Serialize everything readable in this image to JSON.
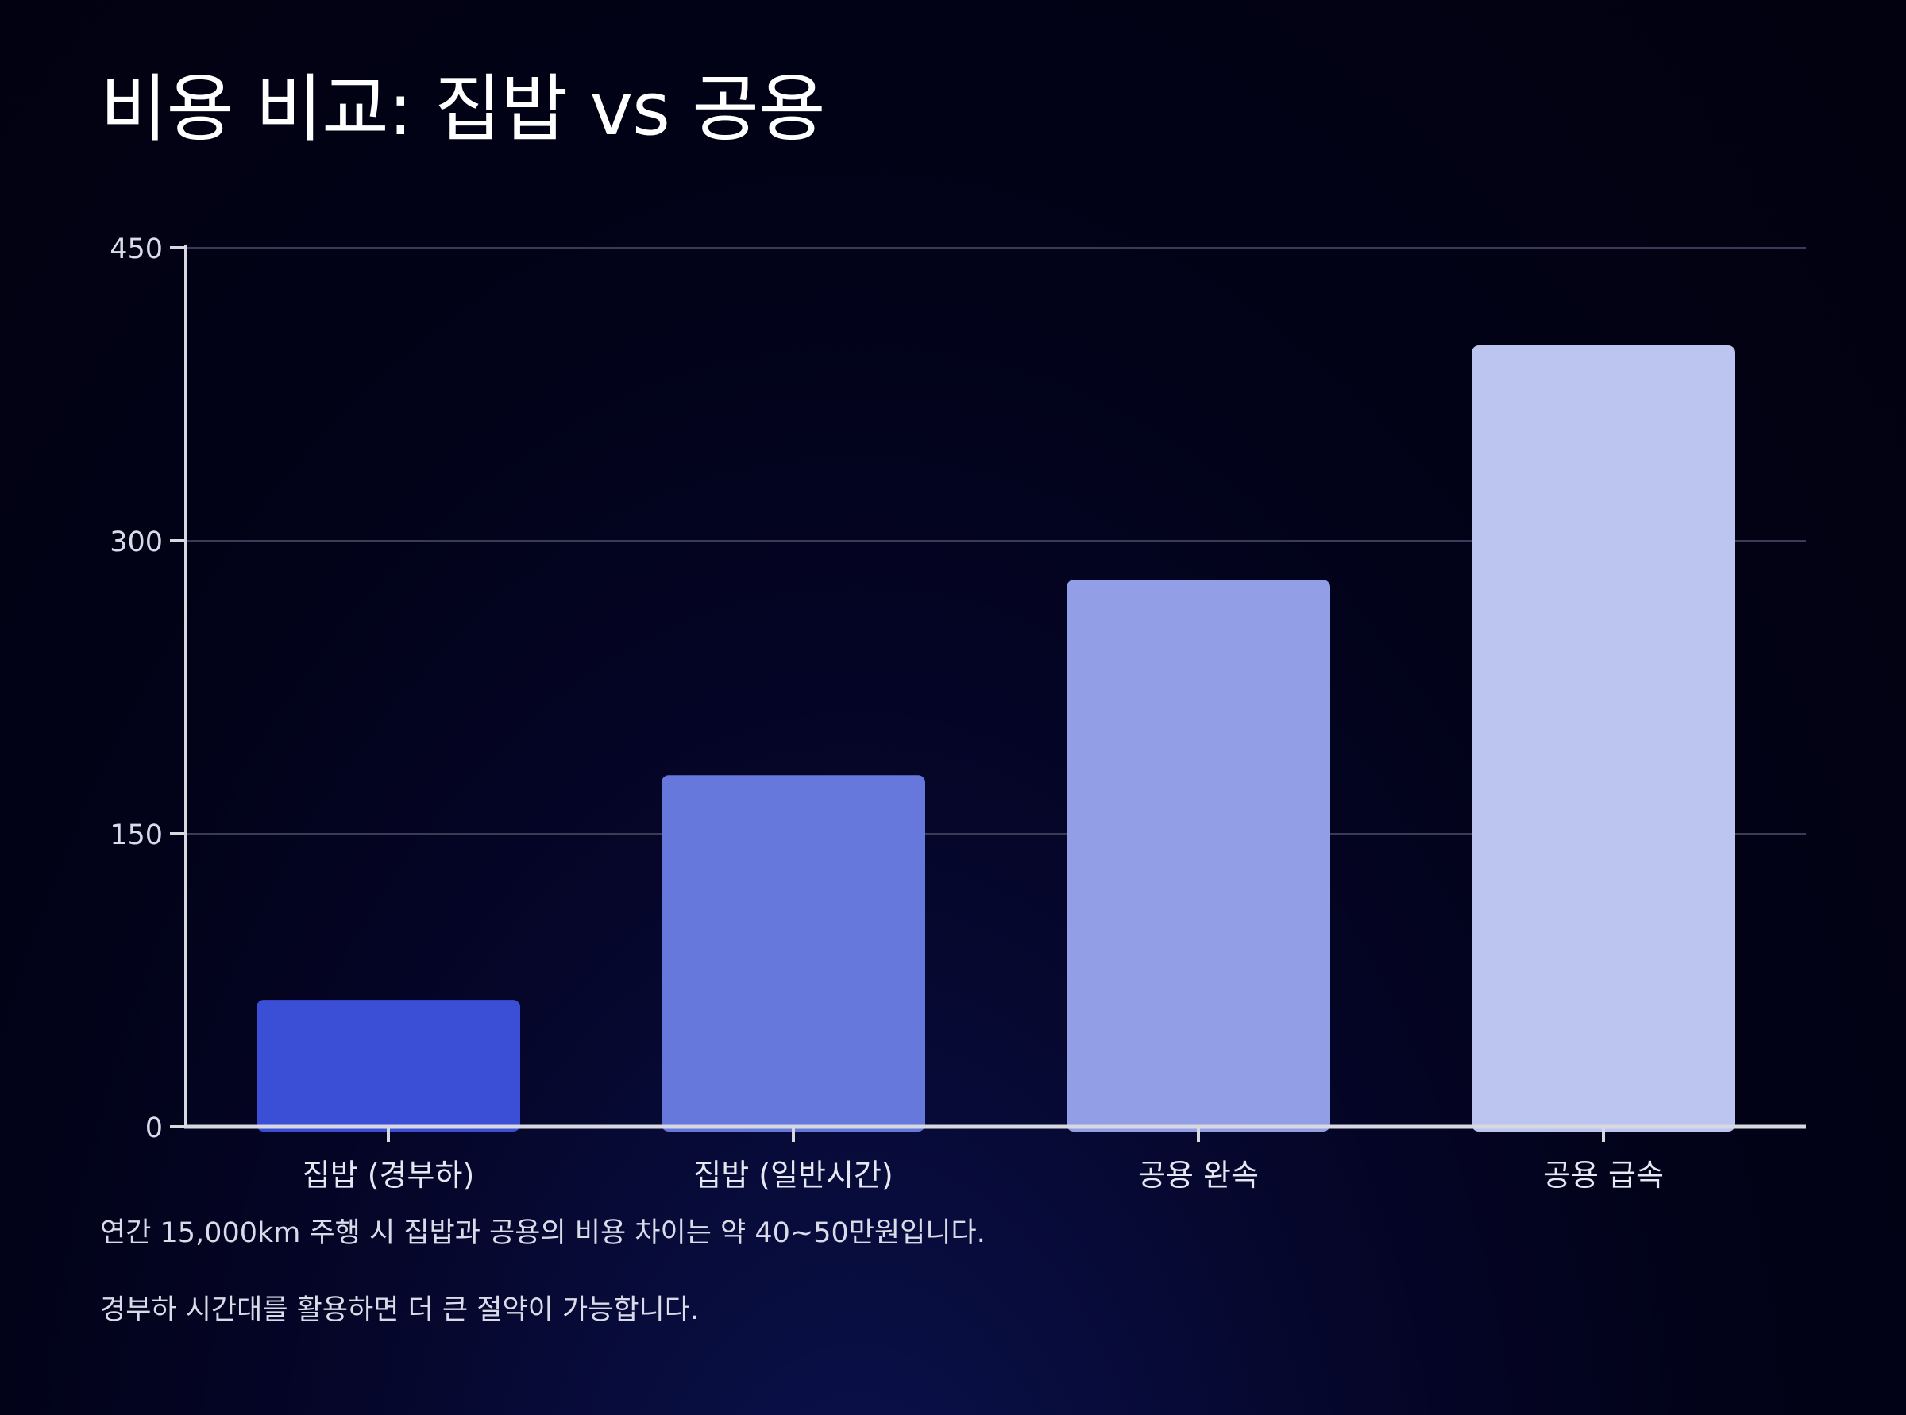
{
  "chart_data": {
    "type": "bar",
    "title": "비용 비교: 집밥 vs 공용",
    "categories": [
      "집밥 (경부하)",
      "집밥 (일반시간)",
      "공용 완속",
      "공용 급속"
    ],
    "values": [
      65,
      180,
      280,
      400
    ],
    "ylim": [
      0,
      450
    ],
    "yticks": [
      0,
      150,
      300,
      450
    ],
    "xlabel": "",
    "ylabel": "",
    "grid": true,
    "colors": [
      "#3a4fd6",
      "#6678dc",
      "#929ee6",
      "#bcc5ef"
    ]
  },
  "notes": [
    "연간 15,000km 주행 시 집밥과 공용의 비용 차이는 약 40~50만원입니다.",
    "경부하 시간대를 활용하면 더 큰 절약이 가능합니다."
  ]
}
